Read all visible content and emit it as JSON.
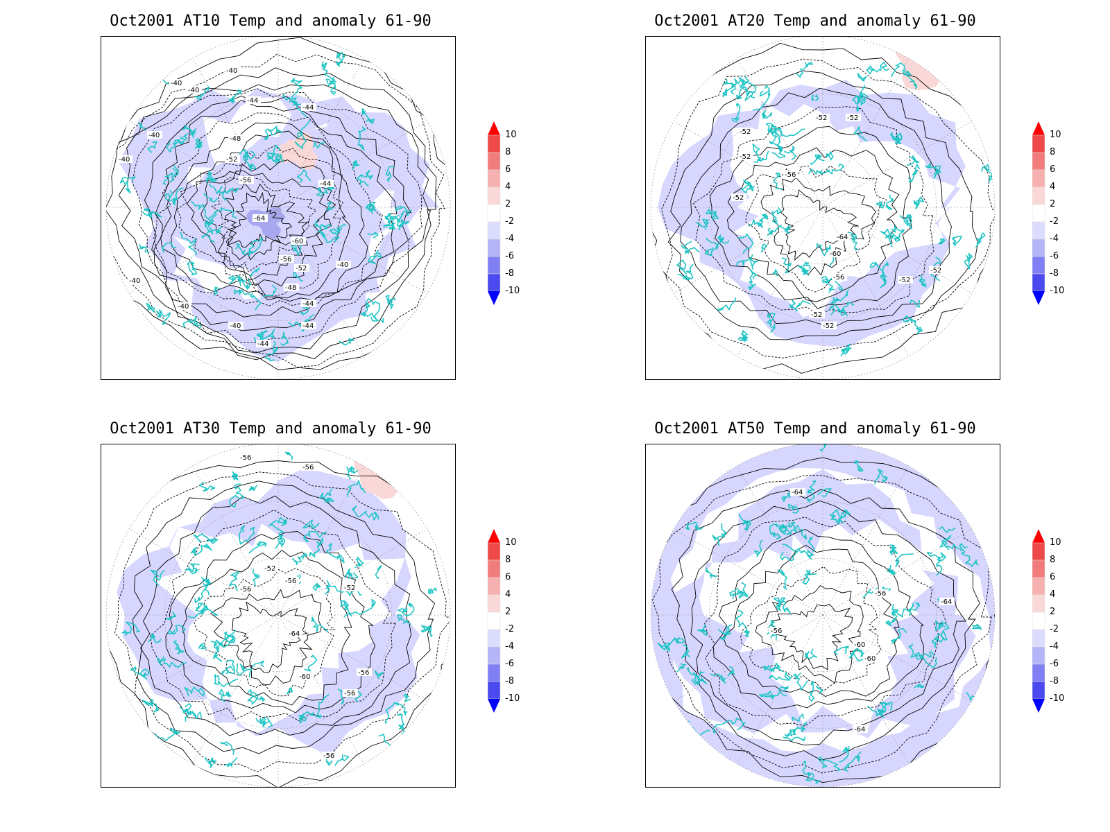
{
  "panels": [
    {
      "title": "Oct2001 AT10 Temp and anomaly 61-90",
      "contour_labels": [
        "-40",
        "-40",
        "-40",
        "-40",
        "-40",
        "-44",
        "-44",
        "-44",
        "-48",
        "-52",
        "-56",
        "-64",
        "-60",
        "-56",
        "-52",
        "-48",
        "-44",
        "-40",
        "-40",
        "-40",
        "-40",
        "-44",
        "-44"
      ],
      "anomaly": {
        "cold_level": -4,
        "warm_level": 2
      }
    },
    {
      "title": "Oct2001 AT20 Temp and anomaly 61-90",
      "contour_labels": [
        "-52",
        "-52",
        "-52",
        "-52",
        "-56",
        "-52",
        "-64",
        "-60",
        "-56",
        "-52",
        "-52",
        "-52",
        "-52"
      ],
      "anomaly": {
        "cold_level": -2,
        "warm_level": 2
      }
    },
    {
      "title": "Oct2001 AT30 Temp and anomaly 61-90",
      "contour_labels": [
        "-56",
        "-56",
        "-52",
        "-56",
        "-52",
        "-56",
        "-64",
        "-60",
        "-56",
        "-56",
        "-56"
      ],
      "anomaly": {
        "cold_level": -2,
        "warm_level": 2
      }
    },
    {
      "title": "Oct2001 AT50 Temp and anomaly 61-90",
      "contour_labels": [
        "-64",
        "-56",
        "-56",
        "-60",
        "-60",
        "-64",
        "-64"
      ],
      "anomaly": {
        "cold_level": -2,
        "warm_level": 0
      }
    }
  ],
  "colorbar": {
    "levels": [
      "10",
      "8",
      "6",
      "4",
      "2",
      "-2",
      "-4",
      "-6",
      "-8",
      "-10"
    ],
    "colors": [
      "#e81010",
      "#ee4a4a",
      "#f27c7c",
      "#f7b0b0",
      "#fbd8d8",
      "#ffffff",
      "#dcdcff",
      "#b4b4f8",
      "#8080f4",
      "#4a4aee",
      "#1414e8"
    ],
    "top_arrow_color": "#ff0000",
    "bottom_arrow_color": "#0000ff"
  },
  "colors": {
    "coastline": "#20c4c4",
    "cold_fill": "#d6d6ff",
    "warm_fill": "#fbd8d8",
    "strong_cold": "#a8a8f0"
  }
}
